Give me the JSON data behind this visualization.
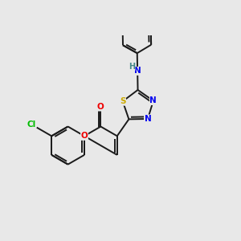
{
  "background_color": "#e8e8e8",
  "bond_color": "#1a1a1a",
  "atom_colors": {
    "Cl": "#00bb00",
    "O": "#ee0000",
    "N": "#0000ee",
    "S": "#ccaa00",
    "H": "#448888",
    "C": "#1a1a1a"
  },
  "figsize": [
    3.0,
    3.0
  ],
  "dpi": 100,
  "lw": 1.4,
  "fs": 7.5
}
